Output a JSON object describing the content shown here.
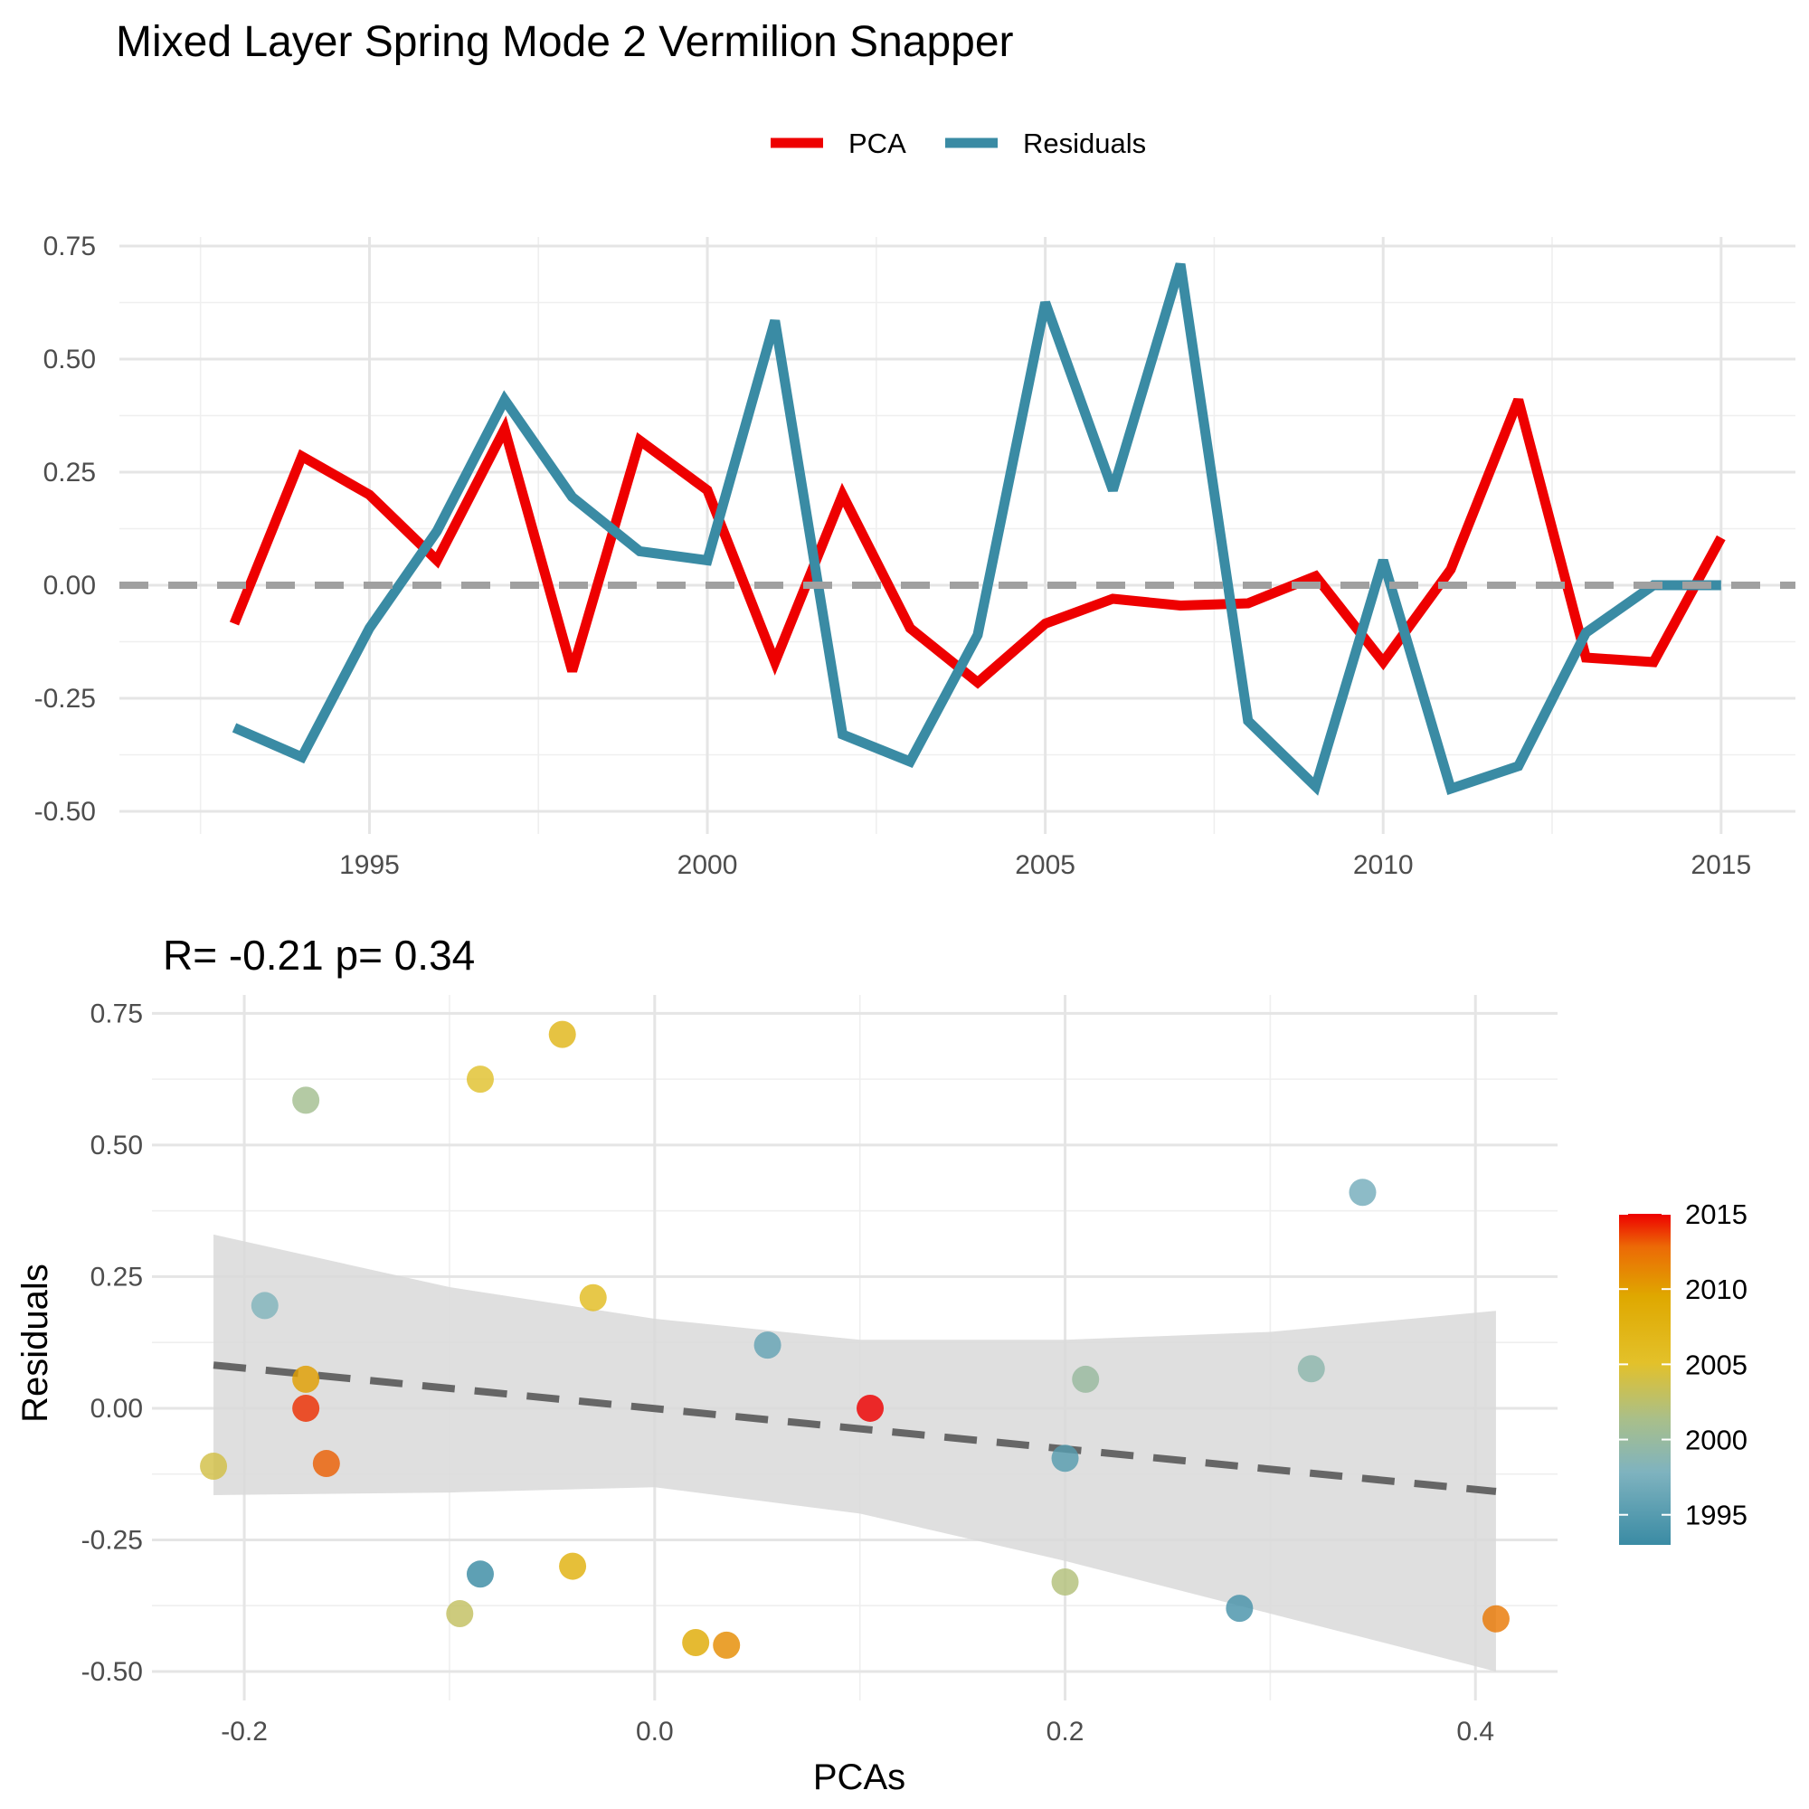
{
  "title": "Mixed Layer Spring Mode 2 Vermilion Snapper",
  "colors": {
    "pca": "#ee0000",
    "residuals": "#3a8ba4",
    "zero_line": "#a0a0a0",
    "fit_line": "#666666",
    "ribbon": "#d9d9d9"
  },
  "chart_data": [
    {
      "type": "line",
      "title": "",
      "xlabel": "",
      "ylabel": "",
      "legend": {
        "position": "top",
        "entries": [
          "PCA",
          "Residuals"
        ]
      },
      "xlim": [
        1991.3,
        2016.1
      ],
      "ylim": [
        -0.55,
        0.77
      ],
      "xticks": [
        1995,
        2000,
        2005,
        2010,
        2015
      ],
      "yticks": [
        -0.5,
        -0.25,
        0.0,
        0.25,
        0.5,
        0.75
      ],
      "ytick_labels": [
        "-0.50",
        "-0.25",
        "0.00",
        "0.25",
        "0.50",
        "0.75"
      ],
      "grid": true,
      "reference_line": {
        "y": 0.0,
        "style": "dashed"
      },
      "x": [
        1993,
        1994,
        1995,
        1996,
        1997,
        1998,
        1999,
        2000,
        2001,
        2002,
        2003,
        2004,
        2005,
        2006,
        2007,
        2008,
        2009,
        2010,
        2011,
        2012,
        2013,
        2014,
        2015
      ],
      "series": [
        {
          "name": "PCA",
          "values": [
            -0.085,
            0.285,
            0.2,
            0.055,
            0.345,
            -0.19,
            0.32,
            0.21,
            -0.17,
            0.2,
            -0.095,
            -0.215,
            -0.085,
            -0.03,
            -0.045,
            -0.04,
            0.02,
            -0.17,
            0.035,
            0.41,
            -0.16,
            -0.17,
            0.105
          ]
        },
        {
          "name": "Residuals",
          "values": [
            -0.315,
            -0.38,
            -0.095,
            0.12,
            0.41,
            0.195,
            0.075,
            0.055,
            0.585,
            -0.33,
            -0.39,
            -0.11,
            0.625,
            0.21,
            0.71,
            -0.3,
            -0.445,
            0.055,
            -0.45,
            -0.4,
            -0.105,
            0.0,
            0.0
          ]
        }
      ]
    },
    {
      "type": "scatter",
      "title": "R= -0.21  p= 0.34",
      "xlabel": "PCAs",
      "ylabel": "Residuals",
      "xlim": [
        -0.245,
        0.44
      ],
      "ylim": [
        -0.555,
        0.785
      ],
      "xticks": [
        -0.2,
        0.0,
        0.2,
        0.4
      ],
      "xtick_labels": [
        "-0.2",
        "0.0",
        "0.2",
        "0.4"
      ],
      "yticks": [
        -0.5,
        -0.25,
        0.0,
        0.25,
        0.5,
        0.75
      ],
      "ytick_labels": [
        "-0.50",
        "-0.25",
        "0.00",
        "0.25",
        "0.50",
        "0.75"
      ],
      "grid": true,
      "color_scale": {
        "name": "",
        "ticks": [
          1995,
          2000,
          2005,
          2010,
          2015
        ],
        "range": [
          1993,
          2015
        ]
      },
      "points": [
        {
          "x": -0.085,
          "y": -0.315,
          "year": 1993
        },
        {
          "x": 0.285,
          "y": -0.38,
          "year": 1994
        },
        {
          "x": 0.2,
          "y": -0.095,
          "year": 1995
        },
        {
          "x": 0.055,
          "y": 0.12,
          "year": 1996
        },
        {
          "x": 0.345,
          "y": 0.41,
          "year": 1997
        },
        {
          "x": -0.19,
          "y": 0.195,
          "year": 1998
        },
        {
          "x": 0.32,
          "y": 0.075,
          "year": 1999
        },
        {
          "x": 0.21,
          "y": 0.055,
          "year": 2000
        },
        {
          "x": -0.17,
          "y": 0.585,
          "year": 2001
        },
        {
          "x": 0.2,
          "y": -0.33,
          "year": 2002
        },
        {
          "x": -0.095,
          "y": -0.39,
          "year": 2003
        },
        {
          "x": -0.215,
          "y": -0.11,
          "year": 2004
        },
        {
          "x": -0.085,
          "y": 0.625,
          "year": 2005
        },
        {
          "x": -0.03,
          "y": 0.21,
          "year": 2006
        },
        {
          "x": -0.045,
          "y": 0.71,
          "year": 2007
        },
        {
          "x": -0.04,
          "y": -0.3,
          "year": 2008
        },
        {
          "x": 0.02,
          "y": -0.445,
          "year": 2009
        },
        {
          "x": -0.17,
          "y": 0.055,
          "year": 2010
        },
        {
          "x": 0.035,
          "y": -0.45,
          "year": 2011
        },
        {
          "x": 0.41,
          "y": -0.4,
          "year": 2012
        },
        {
          "x": -0.16,
          "y": -0.105,
          "year": 2013
        },
        {
          "x": -0.17,
          "y": 0.0,
          "year": 2014
        },
        {
          "x": 0.105,
          "y": 0.0,
          "year": 2015
        }
      ],
      "fit": {
        "x": [
          -0.215,
          0.41
        ],
        "y": [
          0.082,
          -0.158
        ],
        "ribbon": {
          "x": [
            -0.215,
            -0.1,
            0.0,
            0.1,
            0.2,
            0.3,
            0.41
          ],
          "upper": [
            0.33,
            0.23,
            0.17,
            0.13,
            0.13,
            0.145,
            0.185
          ],
          "lower": [
            -0.165,
            -0.16,
            -0.15,
            -0.2,
            -0.29,
            -0.39,
            -0.5
          ]
        }
      }
    }
  ]
}
